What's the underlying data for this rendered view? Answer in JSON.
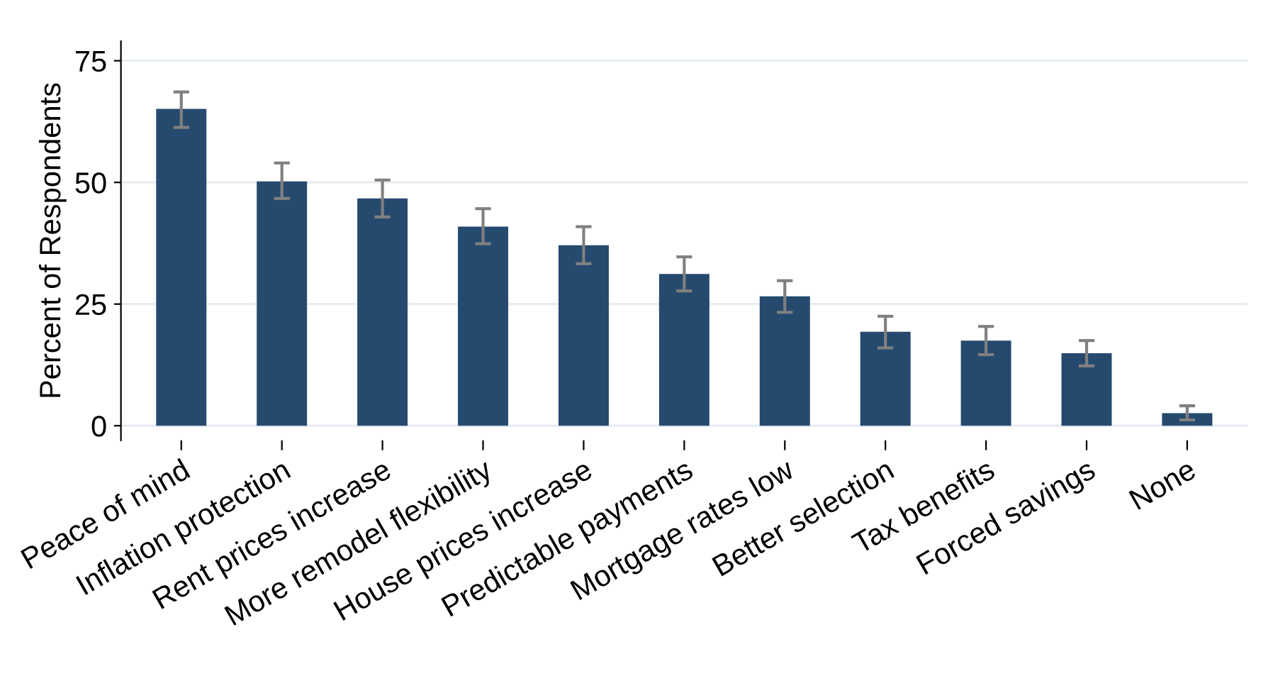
{
  "chart_data": {
    "type": "bar",
    "ylabel": "Percent of Respondents",
    "categories": [
      "Peace of mind",
      "Inflation protection",
      "Rent prices increase",
      "More remodel flexibility",
      "House prices increase",
      "Predictable payments",
      "Mortgage rates low",
      "Better selection",
      "Tax benefits",
      "Forced savings",
      "None"
    ],
    "values": [
      65.1,
      50.2,
      46.7,
      40.9,
      37.1,
      31.2,
      26.6,
      19.3,
      17.5,
      14.9,
      2.6
    ],
    "errors": [
      [
        61.3,
        68.6
      ],
      [
        46.7,
        54
      ],
      [
        42.9,
        50.5
      ],
      [
        37.4,
        44.6
      ],
      [
        33.3,
        40.9
      ],
      [
        27.7,
        34.7
      ],
      [
        23.3,
        29.8
      ],
      [
        16,
        22.5
      ],
      [
        14.6,
        20.4
      ],
      [
        12.3,
        17.5
      ],
      [
        1.2,
        4.1
      ]
    ],
    "color": "#264a6e",
    "ylim": [
      -3,
      79
    ],
    "yticks": [
      0,
      25,
      50,
      75
    ],
    "grid": "y"
  }
}
